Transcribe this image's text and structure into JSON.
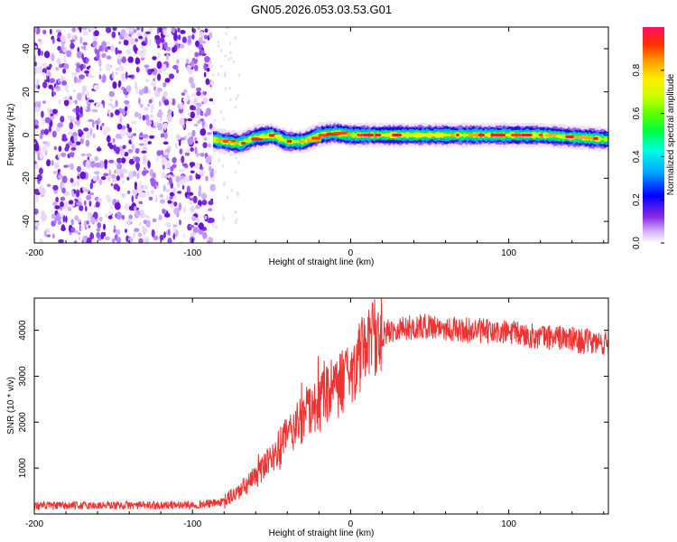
{
  "title": "GN05.2026.053.03.53.G01",
  "chart_data": [
    {
      "type": "heatmap",
      "name": "spectrogram",
      "xlabel": "Height of straight line (km)",
      "ylabel": "Frequency (Hz)",
      "xlim": [
        -200,
        163
      ],
      "ylim": [
        -50,
        50
      ],
      "xticks": [
        -200,
        -100,
        0,
        100
      ],
      "xtick_labels": [
        "-200",
        "-100",
        "0",
        "100"
      ],
      "yticks": [
        -40,
        -20,
        0,
        20,
        40
      ],
      "ytick_labels": [
        "-40",
        "-20",
        "0",
        "20",
        "40"
      ],
      "noise_region_km": [
        -200,
        -87
      ],
      "ridge_frequency_hz": [
        {
          "x": -87,
          "y": -2
        },
        {
          "x": -80,
          "y": -3
        },
        {
          "x": -70,
          "y": -4
        },
        {
          "x": -60,
          "y": -1
        },
        {
          "x": -50,
          "y": 0
        },
        {
          "x": -40,
          "y": -3
        },
        {
          "x": -30,
          "y": -3
        },
        {
          "x": -20,
          "y": 0
        },
        {
          "x": -10,
          "y": 1
        },
        {
          "x": 0,
          "y": 0
        },
        {
          "x": 20,
          "y": 0
        },
        {
          "x": 40,
          "y": 0
        },
        {
          "x": 60,
          "y": 0
        },
        {
          "x": 80,
          "y": 0
        },
        {
          "x": 100,
          "y": 0
        },
        {
          "x": 120,
          "y": 0
        },
        {
          "x": 140,
          "y": -1
        },
        {
          "x": 163,
          "y": -2
        }
      ],
      "colorbar": {
        "label": "Normalized spectral amplitude",
        "range": [
          0,
          1
        ],
        "ticks": [
          0.0,
          0.2,
          0.4,
          0.6,
          0.8
        ],
        "tick_labels": [
          "0.0",
          "0.2",
          "0.4",
          "0.6",
          "0.8"
        ]
      }
    },
    {
      "type": "line",
      "name": "snr",
      "xlabel": "Height of straight line (km)",
      "ylabel": "SNR (10 * v/v)",
      "xlim": [
        -200,
        163
      ],
      "ylim": [
        0,
        4700
      ],
      "xticks": [
        -200,
        -100,
        0,
        100
      ],
      "xtick_labels": [
        "-200",
        "-100",
        "0",
        "100"
      ],
      "yticks": [
        1000,
        2000,
        3000,
        4000
      ],
      "ytick_labels": [
        "1000",
        "2000",
        "3000",
        "4000"
      ],
      "series": [
        {
          "name": "SNR",
          "color": "#ee3333",
          "x": [
            -200,
            -180,
            -160,
            -140,
            -120,
            -100,
            -90,
            -80,
            -75,
            -70,
            -65,
            -60,
            -55,
            -50,
            -45,
            -40,
            -35,
            -30,
            -25,
            -20,
            -15,
            -10,
            -5,
            0,
            5,
            10,
            15,
            20,
            25,
            30,
            40,
            50,
            60,
            70,
            80,
            90,
            100,
            110,
            120,
            130,
            140,
            150,
            163
          ],
          "y": [
            180,
            180,
            185,
            190,
            190,
            200,
            220,
            260,
            400,
            500,
            650,
            800,
            1000,
            1200,
            1450,
            1700,
            1900,
            2100,
            2300,
            2450,
            2550,
            2700,
            2900,
            3150,
            3350,
            3550,
            3750,
            3900,
            4000,
            4050,
            4050,
            4100,
            4050,
            4000,
            4000,
            3950,
            3950,
            3900,
            3850,
            3850,
            3800,
            3750,
            3700
          ]
        }
      ]
    }
  ]
}
